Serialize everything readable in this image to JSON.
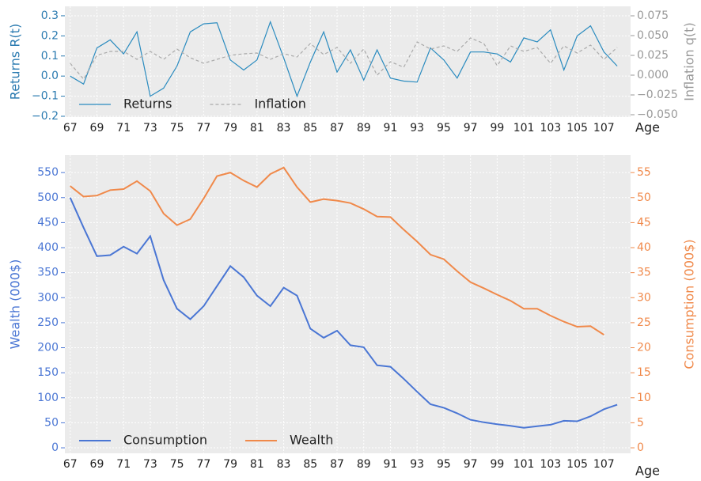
{
  "chart_data": [
    {
      "type": "line",
      "xlabel": "Age",
      "ylabel": "Returns R(t)",
      "y2label": "Inflation q(t)",
      "x": [
        67,
        68,
        69,
        70,
        71,
        72,
        73,
        74,
        75,
        76,
        77,
        78,
        79,
        80,
        81,
        82,
        83,
        84,
        85,
        86,
        87,
        88,
        89,
        90,
        91,
        92,
        93,
        94,
        95,
        96,
        97,
        98,
        99,
        100,
        101,
        102,
        103,
        104,
        105,
        106,
        107,
        108
      ],
      "series": [
        {
          "name": "Returns",
          "color": "#2a8bbf",
          "linestyle": "solid",
          "values": [
            0.0,
            -0.04,
            0.14,
            0.18,
            0.11,
            0.22,
            -0.1,
            -0.06,
            0.05,
            0.22,
            0.26,
            0.265,
            0.08,
            0.03,
            0.08,
            0.27,
            0.09,
            -0.1,
            0.07,
            0.22,
            0.02,
            0.13,
            -0.02,
            0.13,
            -0.01,
            -0.025,
            -0.03,
            0.14,
            0.08,
            -0.01,
            0.12,
            0.12,
            0.11,
            0.07,
            0.19,
            0.17,
            0.23,
            0.03,
            0.2,
            0.25,
            0.12,
            0.05
          ]
        },
        {
          "name": "Inflation",
          "color": "#aaaaaa",
          "linestyle": "dashed",
          "axis": "y2",
          "values": [
            0.015,
            -0.005,
            0.025,
            0.03,
            0.03,
            0.02,
            0.03,
            0.02,
            0.033,
            0.022,
            0.015,
            0.02,
            0.025,
            0.027,
            0.028,
            0.02,
            0.027,
            0.023,
            0.04,
            0.026,
            0.035,
            0.015,
            0.033,
            0.0,
            0.017,
            0.01,
            0.042,
            0.033,
            0.037,
            0.03,
            0.047,
            0.04,
            0.012,
            0.037,
            0.03,
            0.035,
            0.015,
            0.037,
            0.028,
            0.038,
            0.02,
            0.035
          ]
        }
      ],
      "xlim": [
        66.6,
        109.0
      ],
      "xticks": [
        67,
        69,
        71,
        73,
        75,
        77,
        79,
        81,
        83,
        85,
        87,
        89,
        91,
        93,
        95,
        97,
        99,
        101,
        103,
        105,
        107
      ],
      "ylim": [
        -0.204,
        0.347
      ],
      "yticks": [
        {
          "value": -0.2,
          "label": "−0.2"
        },
        {
          "value": -0.1,
          "label": "−0.1"
        },
        {
          "value": 0,
          "label": "0.0"
        },
        0.1,
        0.2,
        0.3
      ],
      "y2lim": [
        -0.053,
        0.087
      ],
      "y2ticks": [
        {
          "value": -0.05,
          "label": "−0.050"
        },
        {
          "value": -0.025,
          "label": "−0.025"
        },
        {
          "value": 0,
          "label": "0.000"
        },
        0.025,
        {
          "value": 0.05,
          "label": "0.050"
        },
        0.075
      ],
      "ycolor": "#2a7ab0",
      "y2color": "#999999",
      "grid": true,
      "legend": "lower left"
    },
    {
      "type": "line",
      "xlabel": "Age",
      "ylabel": "Wealth (000$)",
      "y2label": "Consumption (000$)",
      "x": [
        67,
        68,
        69,
        70,
        71,
        72,
        73,
        74,
        75,
        76,
        77,
        78,
        79,
        80,
        81,
        82,
        83,
        84,
        85,
        86,
        87,
        88,
        89,
        90,
        91,
        92,
        93,
        94,
        95,
        96,
        97,
        98,
        99,
        100,
        101,
        102,
        103,
        104,
        105,
        106,
        107,
        108
      ],
      "series": [
        {
          "name": "Consumption",
          "color": "#4a76d4",
          "linestyle": "solid",
          "values": [
            500,
            440,
            383,
            385,
            402,
            388,
            423,
            335,
            278,
            257,
            283,
            323,
            363,
            341,
            304,
            283,
            320,
            304,
            238,
            220,
            234,
            205,
            201,
            165,
            162,
            138,
            112,
            87,
            80,
            69,
            56,
            51,
            47,
            44,
            40,
            43,
            46,
            54,
            53,
            63,
            77,
            86
          ]
        },
        {
          "name": "Wealth",
          "color": "#f0894a",
          "linestyle": "solid",
          "axis": "y2",
          "values": [
            52.3,
            50.2,
            50.4,
            51.5,
            51.7,
            53.3,
            51.3,
            46.8,
            44.5,
            45.7,
            49.8,
            54.3,
            55,
            53.4,
            52.1,
            54.7,
            56,
            52.1,
            49.1,
            49.7,
            49.4,
            48.9,
            47.7,
            46.2,
            46.1,
            43.6,
            41.2,
            38.6,
            37.7,
            35.3,
            33.1,
            31.9,
            30.6,
            29.4,
            27.8,
            27.8,
            26.4,
            25.2,
            24.2,
            24.3,
            22.6,
            null
          ]
        }
      ],
      "xlim": [
        66.6,
        109.0
      ],
      "xticks": [
        67,
        69,
        71,
        73,
        75,
        77,
        79,
        81,
        83,
        85,
        87,
        89,
        91,
        93,
        95,
        97,
        99,
        101,
        103,
        105,
        107
      ],
      "ylim": [
        -11,
        585
      ],
      "yticks": [
        0,
        50,
        100,
        150,
        200,
        250,
        300,
        350,
        400,
        450,
        500,
        550
      ],
      "y2lim": [
        -1.1,
        58.5
      ],
      "y2ticks": [
        0,
        5,
        10,
        15,
        20,
        25,
        30,
        35,
        40,
        45,
        50,
        55
      ],
      "ycolor": "#4a76d4",
      "y2color": "#f0894a",
      "grid": true,
      "legend": "lower left"
    }
  ]
}
